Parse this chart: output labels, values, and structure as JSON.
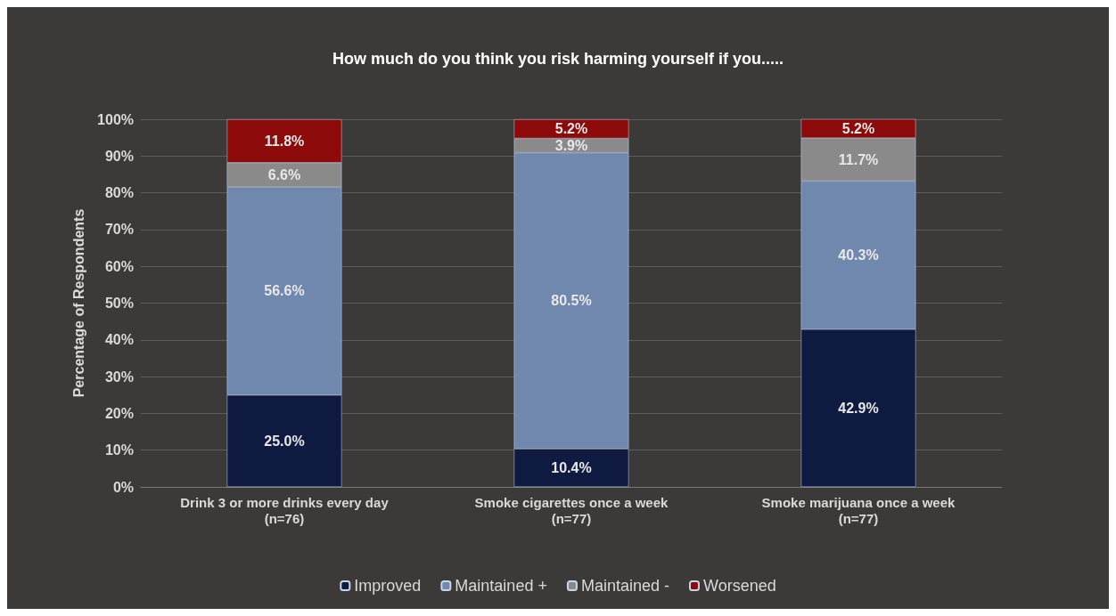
{
  "chart_data": {
    "type": "bar",
    "title": "How much do you think you risk harming yourself if you.....",
    "ylabel": "Percentage of Respondents",
    "stacked": true,
    "categories": [
      "Drink 3 or more drinks every day\n(n=76)",
      "Smoke cigarettes once a week\n(n=77)",
      "Smoke marijuana once a week\n(n=77)"
    ],
    "series": [
      {
        "name": "Improved",
        "color": "#0e1a40",
        "values": [
          25.0,
          10.4,
          42.9
        ],
        "value_labels": [
          "25.0%",
          "10.4%",
          "42.9%"
        ]
      },
      {
        "name": "Maintained +",
        "color": "#7088ad",
        "values": [
          56.6,
          80.5,
          40.3
        ],
        "value_labels": [
          "56.6%",
          "80.5%",
          "40.3%"
        ]
      },
      {
        "name": "Maintained -",
        "color": "#8a8a8a",
        "values": [
          6.6,
          3.9,
          11.7
        ],
        "value_labels": [
          "6.6%",
          "3.9%",
          "11.7%"
        ]
      },
      {
        "name": "Worsened",
        "color": "#8c0a0a",
        "values": [
          11.8,
          5.2,
          5.2
        ],
        "value_labels": [
          "11.8%",
          "5.2%",
          "5.2%"
        ]
      }
    ],
    "ylim": [
      0,
      100
    ],
    "yticks": [
      {
        "value": 0,
        "label": "0%"
      },
      {
        "value": 10,
        "label": "10%"
      },
      {
        "value": 20,
        "label": "20%"
      },
      {
        "value": 30,
        "label": "30%"
      },
      {
        "value": 40,
        "label": "40%"
      },
      {
        "value": 50,
        "label": "50%"
      },
      {
        "value": 60,
        "label": "60%"
      },
      {
        "value": 70,
        "label": "70%"
      },
      {
        "value": 80,
        "label": "80%"
      },
      {
        "value": 90,
        "label": "90%"
      },
      {
        "value": 100,
        "label": "100%"
      }
    ],
    "grid": "y",
    "legend": "bottom"
  }
}
